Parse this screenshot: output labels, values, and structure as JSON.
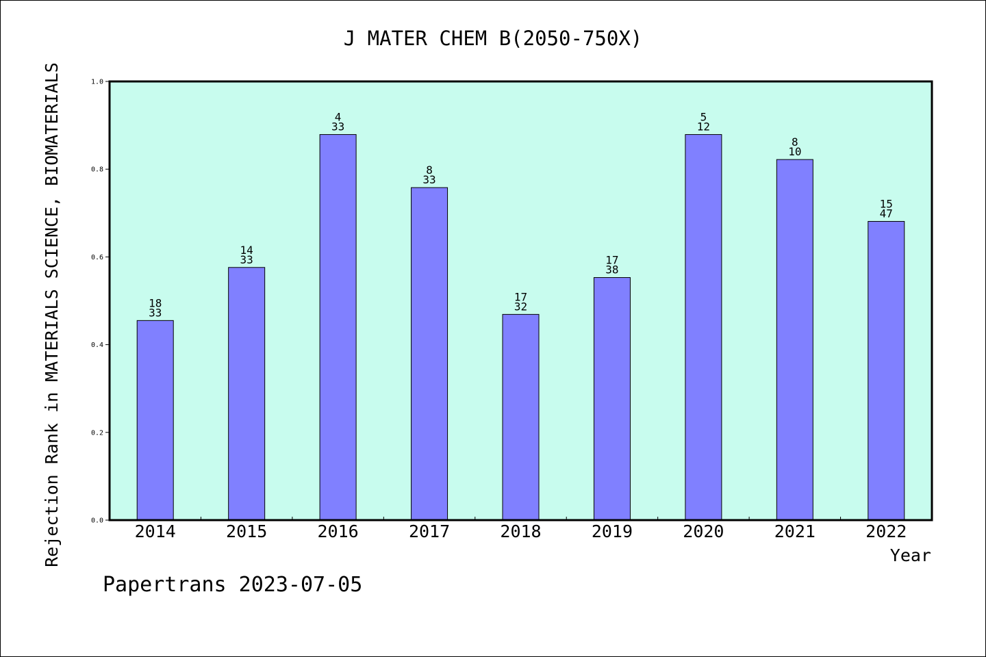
{
  "chart_data": {
    "type": "bar",
    "title": "J MATER CHEM B(2050-750X)",
    "xlabel": "Year",
    "ylabel": "Rejection Rank in MATERIALS SCIENCE, BIOMATERIALS",
    "ylim": [
      0,
      1.0
    ],
    "yticks": [
      "0.0",
      "0.2",
      "0.4",
      "0.6",
      "0.8",
      "1.0"
    ],
    "categories": [
      "2014",
      "2015",
      "2016",
      "2017",
      "2018",
      "2019",
      "2020",
      "2021",
      "2022"
    ],
    "values": [
      0.455,
      0.576,
      0.879,
      0.758,
      0.469,
      0.553,
      0.879,
      0.822,
      0.681
    ],
    "rank": [
      "18",
      "14",
      "4",
      "8",
      "17",
      "17",
      "5",
      "8",
      "15"
    ],
    "total": [
      "33",
      "33",
      "33",
      "33",
      "32",
      "38",
      "12",
      "10",
      "47"
    ],
    "colors": {
      "plot_bg": "#c8fcee",
      "bar": "#8080ff",
      "bar_edge": "#000000"
    },
    "grid": false
  },
  "footer": "Papertrans 2023-07-05"
}
